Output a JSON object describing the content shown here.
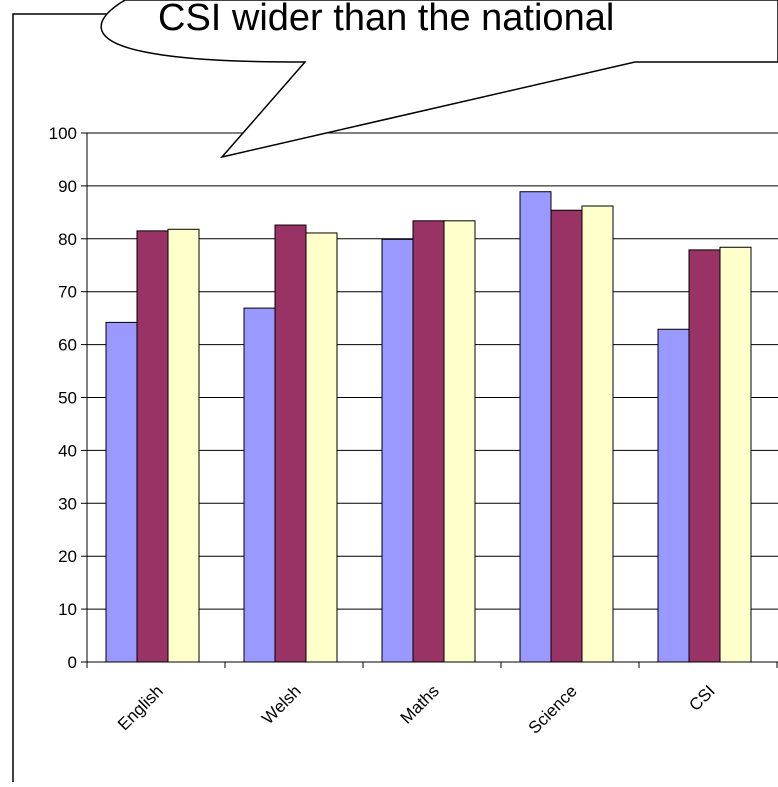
{
  "callout": {
    "text": "CSI wider than the national"
  },
  "chart_data": {
    "type": "bar",
    "title": "",
    "xlabel": "",
    "ylabel": "",
    "ylim": [
      0,
      100
    ],
    "yticks": [
      0,
      10,
      20,
      30,
      40,
      50,
      60,
      70,
      80,
      90,
      100
    ],
    "grid": true,
    "categories": [
      "English",
      "Welsh",
      "Maths",
      "Science",
      "CSI"
    ],
    "series": [
      {
        "values": [
          64.2,
          66.9,
          79.9,
          88.9,
          62.9
        ],
        "color": "#9999ff"
      },
      {
        "values": [
          81.5,
          82.6,
          83.4,
          85.4,
          77.9
        ],
        "color": "#993366"
      },
      {
        "values": [
          81.8,
          81.1,
          83.4,
          86.2,
          78.4
        ],
        "color": "#ffffcc"
      }
    ]
  }
}
